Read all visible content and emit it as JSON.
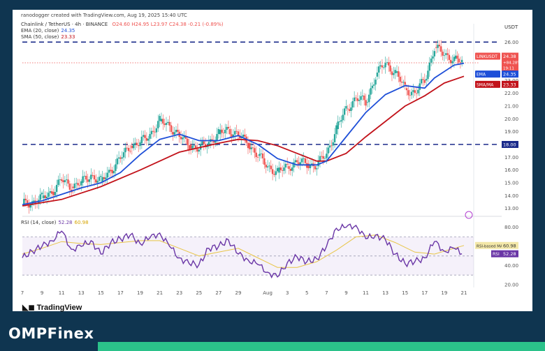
{
  "header": {
    "caption": "ranodogger created with TradingView.com, Aug 19, 2025 15:40 UTC",
    "symbol_line": "Chainlink / TetherUS · 4h · BINANCE",
    "ohlc": "O24.60 H24.95 L23.97 C24.38 -0.21 (-0.89%)"
  },
  "legend": {
    "ema_label": "EMA (20, close)",
    "ema_value": "24.35",
    "sma_label": "SMA (50, close)",
    "sma_value": "23.33",
    "rsi_label": "RSI (14, close)",
    "rsi_value": "52.28",
    "rsi_ma_value": "60.98"
  },
  "branding": {
    "tv": "TradingView",
    "site": "OMPFinex"
  },
  "colors": {
    "up": "#26a69a",
    "down": "#ef5350",
    "ema": "#1e4fd8",
    "sma": "#c2121a",
    "rsi": "#6a36a6",
    "rsi_ma": "#e8c547",
    "level": "#1a2a8a",
    "navy": "#0f3550",
    "brand_green": "#2bc28a"
  },
  "chart_data": [
    {
      "type": "line",
      "name": "price",
      "title": "Chainlink / TetherUS · 4h · BINANCE",
      "currency": "USDT",
      "ylim": [
        12.6,
        27.0
      ],
      "y_ticks": [
        "26.00",
        "25.00",
        "24.00",
        "23.00",
        "22.00",
        "21.00",
        "20.00",
        "19.00",
        "18.00",
        "17.00",
        "16.00",
        "15.00",
        "14.00",
        "13.00"
      ],
      "x_ticks": [
        "7",
        "9",
        "11",
        "13",
        "15",
        "17",
        "19",
        "21",
        "23",
        "25",
        "27",
        "29",
        "Aug",
        "3",
        "5",
        "7",
        "9",
        "11",
        "13",
        "15",
        "17",
        "19",
        "21"
      ],
      "x_tick_pos": [
        0,
        2,
        4,
        6,
        8,
        10,
        12,
        14,
        16,
        18,
        20,
        22,
        25,
        27,
        29,
        31,
        33,
        35,
        37,
        39,
        41,
        43,
        45
      ],
      "horizontal_levels": [
        18.0,
        26.0
      ],
      "last_price": 24.38,
      "price_labels": [
        {
          "text": "LINKUSDT",
          "value": "24.38",
          "extra": "+84.28%",
          "extra2": "19:11",
          "color": "#ef5350"
        },
        {
          "text": "EMA",
          "value": "24.35",
          "color": "#1e4fd8"
        },
        {
          "text": "SMA/MA",
          "value": "23.33",
          "color": "#c2121a"
        },
        {
          "text": "",
          "value": "18.00",
          "color": "#1a2a8a"
        }
      ],
      "close": [
        [
          0,
          13.3
        ],
        [
          1,
          13.5
        ],
        [
          2,
          13.8
        ],
        [
          3,
          14.3
        ],
        [
          4,
          15.2
        ],
        [
          5,
          14.7
        ],
        [
          6,
          15.0
        ],
        [
          7,
          15.6
        ],
        [
          8,
          15.1
        ],
        [
          9,
          16.0
        ],
        [
          10,
          16.9
        ],
        [
          11,
          17.9
        ],
        [
          12,
          18.1
        ],
        [
          13,
          18.8
        ],
        [
          14,
          19.8
        ],
        [
          15,
          19.5
        ],
        [
          16,
          18.6
        ],
        [
          17,
          18.0
        ],
        [
          18,
          17.6
        ],
        [
          19,
          18.2
        ],
        [
          20,
          18.8
        ],
        [
          21,
          19.2
        ],
        [
          22,
          18.7
        ],
        [
          23,
          18.1
        ],
        [
          24,
          17.1
        ],
        [
          25,
          16.3
        ],
        [
          26,
          15.8
        ],
        [
          27,
          16.3
        ],
        [
          28,
          16.6
        ],
        [
          29,
          16.5
        ],
        [
          30,
          16.3
        ],
        [
          31,
          17.3
        ],
        [
          32,
          19.2
        ],
        [
          33,
          20.8
        ],
        [
          34,
          21.6
        ],
        [
          35,
          21.3
        ],
        [
          36,
          23.3
        ],
        [
          37,
          24.4
        ],
        [
          38,
          23.6
        ],
        [
          39,
          22.4
        ],
        [
          40,
          22.0
        ],
        [
          41,
          23.0
        ],
        [
          42,
          25.6
        ],
        [
          43,
          25.0
        ],
        [
          44,
          24.7
        ],
        [
          44.8,
          24.38
        ]
      ],
      "series": [
        {
          "name": "EMA (20, close)",
          "values": [
            [
              0,
              13.3
            ],
            [
              2,
              13.6
            ],
            [
              4,
              14.1
            ],
            [
              6,
              14.6
            ],
            [
              8,
              15.0
            ],
            [
              10,
              15.8
            ],
            [
              12,
              17.2
            ],
            [
              14,
              18.4
            ],
            [
              16,
              18.8
            ],
            [
              18,
              18.3
            ],
            [
              20,
              18.3
            ],
            [
              22,
              18.7
            ],
            [
              24,
              18.0
            ],
            [
              26,
              16.9
            ],
            [
              28,
              16.4
            ],
            [
              30,
              16.4
            ],
            [
              31,
              16.7
            ],
            [
              33,
              18.6
            ],
            [
              35,
              20.5
            ],
            [
              37,
              21.9
            ],
            [
              39,
              22.6
            ],
            [
              41,
              22.4
            ],
            [
              42,
              23.2
            ],
            [
              44,
              24.2
            ],
            [
              45,
              24.35
            ]
          ]
        },
        {
          "name": "SMA (50, close)",
          "values": [
            [
              0,
              13.2
            ],
            [
              4,
              13.7
            ],
            [
              8,
              14.7
            ],
            [
              12,
              16.0
            ],
            [
              16,
              17.4
            ],
            [
              20,
              18.1
            ],
            [
              22,
              18.4
            ],
            [
              24,
              18.3
            ],
            [
              26,
              17.9
            ],
            [
              28,
              17.3
            ],
            [
              30,
              16.7
            ],
            [
              31,
              16.7
            ],
            [
              33,
              17.3
            ],
            [
              35,
              18.6
            ],
            [
              37,
              19.8
            ],
            [
              39,
              21.0
            ],
            [
              41,
              21.8
            ],
            [
              43,
              22.8
            ],
            [
              45,
              23.33
            ]
          ]
        }
      ]
    },
    {
      "type": "line",
      "name": "rsi",
      "title": "RSI (14, close)",
      "ylim": [
        17,
        90
      ],
      "y_ticks": [
        "80.00",
        "60.00",
        "40.00",
        "20.00"
      ],
      "bands": [
        70,
        30
      ],
      "series": [
        {
          "name": "RSI (14, close)",
          "values": [
            [
              0,
              48
            ],
            [
              1,
              55
            ],
            [
              2,
              60
            ],
            [
              3,
              66
            ],
            [
              4,
              76
            ],
            [
              5,
              57
            ],
            [
              6,
              60
            ],
            [
              7,
              66
            ],
            [
              8,
              52
            ],
            [
              9,
              64
            ],
            [
              10,
              68
            ],
            [
              11,
              72
            ],
            [
              12,
              63
            ],
            [
              13,
              69
            ],
            [
              14,
              74
            ],
            [
              15,
              60
            ],
            [
              16,
              48
            ],
            [
              17,
              42
            ],
            [
              18,
              41
            ],
            [
              19,
              58
            ],
            [
              20,
              60
            ],
            [
              21,
              67
            ],
            [
              22,
              52
            ],
            [
              23,
              46
            ],
            [
              24,
              41
            ],
            [
              25,
              33
            ],
            [
              26,
              28
            ],
            [
              27,
              43
            ],
            [
              28,
              49
            ],
            [
              29,
              44
            ],
            [
              30,
              47
            ],
            [
              31,
              60
            ],
            [
              32,
              79
            ],
            [
              33,
              80
            ],
            [
              34,
              82
            ],
            [
              35,
              68
            ],
            [
              36,
              72
            ],
            [
              37,
              67
            ],
            [
              38,
              52
            ],
            [
              39,
              42
            ],
            [
              40,
              44
            ],
            [
              41,
              48
            ],
            [
              42,
              65
            ],
            [
              43,
              55
            ],
            [
              44,
              58
            ],
            [
              44.8,
              52.28
            ]
          ]
        },
        {
          "name": "RSI-based MA",
          "values": [
            [
              0,
              52
            ],
            [
              2,
              58
            ],
            [
              4,
              65
            ],
            [
              6,
              63
            ],
            [
              8,
              62
            ],
            [
              10,
              64
            ],
            [
              12,
              66
            ],
            [
              14,
              66
            ],
            [
              16,
              58
            ],
            [
              18,
              50
            ],
            [
              20,
              54
            ],
            [
              22,
              58
            ],
            [
              24,
              48
            ],
            [
              26,
              38
            ],
            [
              28,
              38
            ],
            [
              30,
              44
            ],
            [
              32,
              56
            ],
            [
              34,
              70
            ],
            [
              36,
              72
            ],
            [
              38,
              64
            ],
            [
              40,
              54
            ],
            [
              42,
              52
            ],
            [
              44,
              58
            ],
            [
              45,
              60.98
            ]
          ]
        }
      ]
    }
  ]
}
